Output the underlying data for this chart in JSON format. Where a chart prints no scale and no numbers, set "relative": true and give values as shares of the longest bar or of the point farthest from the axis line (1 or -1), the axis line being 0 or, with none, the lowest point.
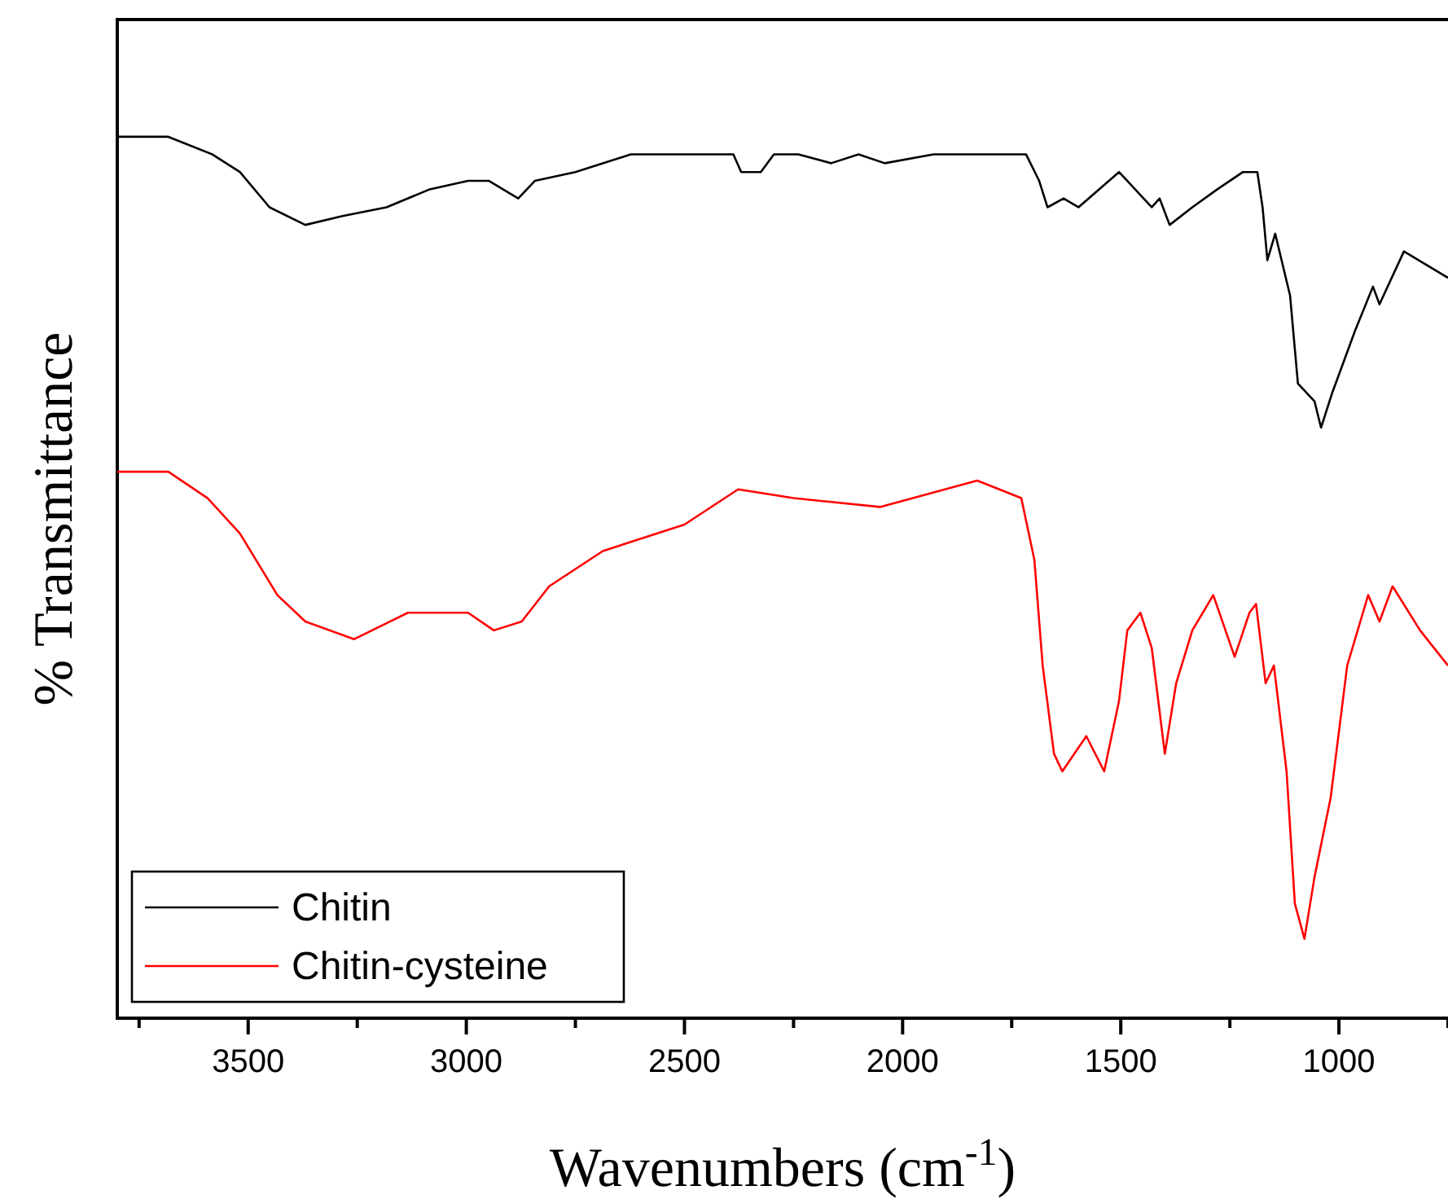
{
  "chart_data": {
    "type": "line",
    "xlabel": "Wavenumbers (cm$^{-1}$)",
    "ylabel": "% Transmittance",
    "relative": true,
    "legend": "bottom left",
    "line_style": "solid",
    "marker": "none",
    "grid": false,
    "xlim": [
      3800,
      750
    ],
    "xticks": [
      {
        "value": 3750,
        "label": null
      },
      3500,
      {
        "value": 3250,
        "label": null
      },
      3000,
      {
        "value": 2750,
        "label": null
      },
      2500,
      {
        "value": 2250,
        "label": null
      },
      2000,
      {
        "value": 1750,
        "label": null
      },
      1500,
      {
        "value": 1250,
        "label": null
      },
      1000,
      {
        "value": 750,
        "label": null
      }
    ],
    "series": [
      {
        "name": "Chitin",
        "color": "#000000",
        "x": [
          3800,
          3683,
          3582,
          3519,
          3451,
          3369,
          3284,
          3183,
          3086,
          2996,
          2948,
          2881,
          2843,
          2750,
          2623,
          2437,
          2388,
          2370,
          2325,
          2295,
          2239,
          2164,
          2101,
          2041,
          1929,
          1802,
          1717,
          1687,
          1668,
          1631,
          1597,
          1504,
          1429,
          1411,
          1388,
          1336,
          1280,
          1220,
          1187,
          1175,
          1164,
          1146,
          1112,
          1094,
          1056,
          1041,
          1015,
          963,
          922,
          907,
          851,
          750
        ],
        "values": [
          1.0,
          1.0,
          0.98,
          0.96,
          0.92,
          0.9,
          0.91,
          0.92,
          0.94,
          0.95,
          0.95,
          0.93,
          0.95,
          0.96,
          0.98,
          0.98,
          0.98,
          0.96,
          0.96,
          0.98,
          0.98,
          0.97,
          0.98,
          0.97,
          0.98,
          0.98,
          0.98,
          0.95,
          0.92,
          0.93,
          0.92,
          0.96,
          0.92,
          0.93,
          0.9,
          0.92,
          0.94,
          0.96,
          0.96,
          0.92,
          0.86,
          0.89,
          0.82,
          0.72,
          0.7,
          0.67,
          0.71,
          0.78,
          0.83,
          0.81,
          0.87,
          0.84
        ]
      },
      {
        "name": "Chitin-cysteine",
        "color": "#ff0000",
        "x": [
          3800,
          3683,
          3593,
          3519,
          3433,
          3369,
          3257,
          3134,
          2996,
          2937,
          2873,
          2810,
          2687,
          2500,
          2377,
          2250,
          2052,
          1829,
          1728,
          1698,
          1679,
          1653,
          1634,
          1579,
          1538,
          1504,
          1485,
          1455,
          1429,
          1399,
          1373,
          1336,
          1288,
          1239,
          1205,
          1190,
          1168,
          1149,
          1120,
          1101,
          1079,
          1056,
          1019,
          981,
          933,
          907,
          877,
          814,
          750
        ],
        "values": [
          0.62,
          0.62,
          0.59,
          0.55,
          0.48,
          0.45,
          0.43,
          0.46,
          0.46,
          0.44,
          0.45,
          0.49,
          0.53,
          0.56,
          0.6,
          0.59,
          0.58,
          0.61,
          0.59,
          0.52,
          0.4,
          0.3,
          0.28,
          0.32,
          0.28,
          0.36,
          0.44,
          0.46,
          0.42,
          0.3,
          0.38,
          0.44,
          0.48,
          0.41,
          0.46,
          0.47,
          0.38,
          0.4,
          0.28,
          0.13,
          0.09,
          0.16,
          0.25,
          0.4,
          0.48,
          0.45,
          0.49,
          0.44,
          0.4
        ]
      }
    ]
  }
}
